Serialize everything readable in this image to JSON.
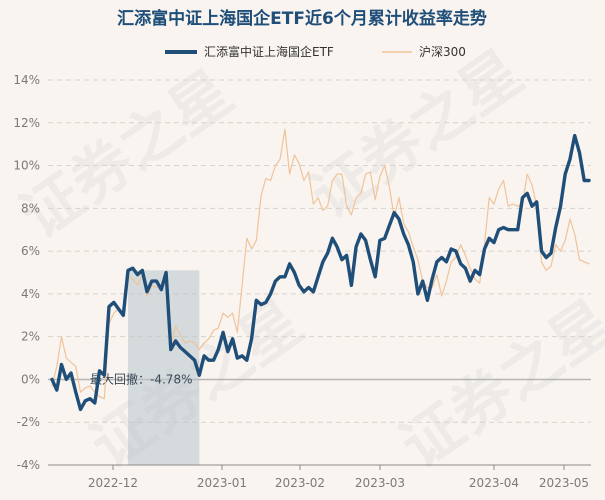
{
  "chart_data": {
    "type": "line",
    "title": "汇添富中证上海国企ETF近6个月累计收益率走势",
    "xlabel": "",
    "ylabel": "",
    "x_ticks": [
      "2022-12",
      "2023-01",
      "2023-02",
      "2023-03",
      "2023-04",
      "2023-05"
    ],
    "y_ticks": [
      "14%",
      "12%",
      "10%",
      "8%",
      "6%",
      "4%",
      "2%",
      "0%",
      "-2%",
      "-4%"
    ],
    "ylim": [
      -4,
      14
    ],
    "grid": "horizontal dashed",
    "legend": "top-center",
    "series": [
      {
        "name": "汇添富中证上海国企ETF",
        "color": "#1f4e79",
        "values": [
          0.0,
          -0.5,
          0.7,
          0.0,
          0.3,
          -0.6,
          -1.4,
          -1.0,
          -0.9,
          -1.1,
          0.4,
          0.2,
          3.4,
          3.6,
          3.3,
          3.0,
          5.1,
          5.2,
          4.9,
          5.1,
          4.1,
          4.6,
          4.6,
          4.2,
          5.0,
          1.4,
          1.8,
          1.5,
          1.3,
          1.1,
          0.9,
          0.2,
          1.1,
          0.9,
          0.9,
          1.4,
          2.2,
          1.3,
          1.9,
          1.0,
          1.1,
          0.9,
          1.9,
          3.7,
          3.5,
          3.6,
          4.0,
          4.6,
          4.8,
          4.8,
          5.4,
          5.0,
          4.4,
          4.1,
          4.3,
          4.1,
          4.8,
          5.5,
          5.9,
          6.6,
          6.2,
          5.6,
          5.8,
          4.4,
          6.2,
          6.8,
          6.5,
          5.6,
          4.8,
          6.5,
          6.6,
          7.2,
          7.8,
          7.5,
          6.8,
          6.3,
          5.5,
          4.0,
          4.6,
          3.7,
          4.7,
          5.5,
          5.7,
          5.5,
          6.1,
          6.0,
          5.4,
          5.2,
          4.6,
          5.1,
          4.9,
          6.1,
          6.6,
          6.4,
          7.0,
          7.1,
          7.0,
          7.0,
          7.0,
          8.5,
          8.7,
          8.1,
          8.3,
          6.0,
          5.7,
          5.9,
          7.1,
          8.1,
          9.6,
          10.3,
          11.4,
          10.6,
          9.3,
          9.3
        ]
      },
      {
        "name": "沪深300",
        "color": "#f0c49a",
        "values": [
          -0.3,
          0.6,
          2.0,
          1.0,
          0.8,
          0.6,
          -0.6,
          -0.4,
          -0.3,
          -0.6,
          -0.8,
          -0.9,
          2.6,
          3.1,
          3.3,
          3.0,
          4.8,
          4.7,
          4.4,
          4.9,
          3.9,
          4.4,
          4.3,
          4.3,
          4.6,
          1.5,
          2.5,
          2.1,
          1.7,
          1.8,
          1.7,
          1.4,
          1.7,
          1.9,
          2.3,
          2.4,
          3.1,
          2.9,
          3.1,
          2.2,
          4.4,
          6.6,
          6.1,
          6.5,
          8.6,
          9.4,
          9.3,
          10.0,
          10.3,
          11.7,
          9.6,
          10.5,
          10.1,
          9.3,
          9.7,
          8.2,
          8.5,
          7.9,
          8.1,
          9.3,
          9.6,
          9.6,
          8.1,
          7.7,
          8.5,
          8.7,
          9.6,
          9.7,
          8.4,
          9.5,
          10.0,
          9.0,
          7.6,
          8.5,
          7.3,
          6.9,
          6.2,
          5.6,
          4.6,
          4.3,
          4.3,
          4.9,
          3.9,
          4.6,
          5.5,
          5.7,
          6.3,
          5.8,
          5.2,
          4.7,
          4.5,
          6.3,
          8.5,
          8.2,
          8.9,
          9.3,
          8.1,
          8.2,
          8.1,
          8.2,
          9.6,
          9.1,
          8.1,
          5.5,
          5.1,
          5.3,
          6.3,
          6.0,
          6.5,
          7.5,
          6.8,
          5.6,
          5.5,
          5.4
        ]
      }
    ],
    "annotations": [
      {
        "text": "最大回撤：-4.78%",
        "type": "max-drawdown",
        "start_index": 16,
        "end_index": 31
      }
    ],
    "watermark": "证券之星"
  }
}
